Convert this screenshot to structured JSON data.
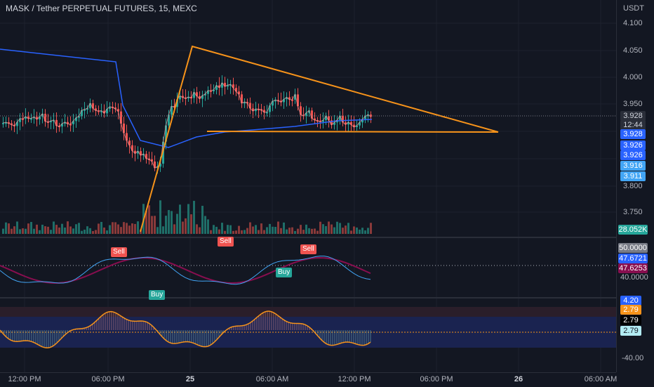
{
  "header": {
    "symbol_title": "MASK / Tether PERPETUAL FUTURES, 15, MEXC"
  },
  "price_axis": {
    "currency": "USDT",
    "ticks": [
      "4.100",
      "4.050",
      "4.000",
      "3.950",
      "3.800",
      "3.750"
    ]
  },
  "price_tags": {
    "last": "3.928",
    "countdown": "12:44",
    "t2": "3.928",
    "t3": "3.926",
    "t4": "3.926",
    "t5": "3.916",
    "t6": "3.911",
    "volume": "28.052K"
  },
  "osc1": {
    "tag1": "50.0000",
    "tag2": "47.6721",
    "tag3": "47.6253",
    "tick": "40.0000",
    "sell": "Sell",
    "buy": "Buy"
  },
  "osc2": {
    "tag1": "4.20",
    "tag2": "2.79",
    "tag3": "2.79",
    "tag4": "2.79",
    "tick": "-40.00"
  },
  "time_axis": {
    "labels": [
      "12:00 PM",
      "06:00 PM",
      "25",
      "06:00 AM",
      "12:00 PM",
      "06:00 PM",
      "26",
      "06:00 AM"
    ]
  },
  "colors": {
    "bull": "#26a69a",
    "bear": "#ef5350",
    "trend": "#f7931a",
    "ma": "#2962ff",
    "bg": "#131722"
  }
}
